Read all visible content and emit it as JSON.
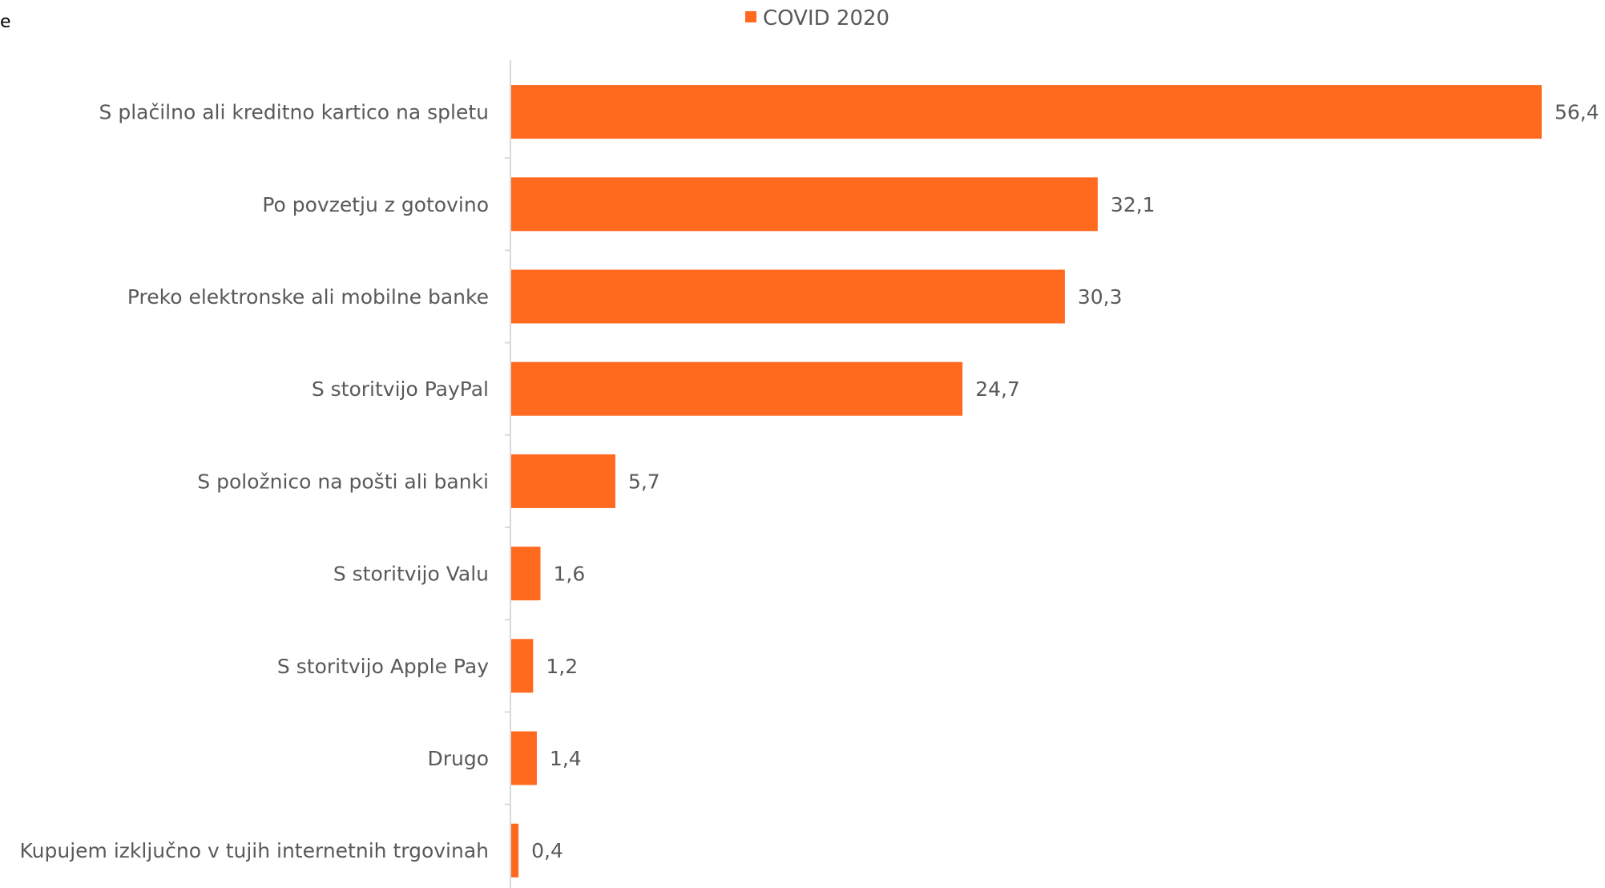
{
  "edge_fragment_text": "e",
  "legend": {
    "label": "COVID 2020"
  },
  "colors": {
    "bar": "#ff6a1f",
    "text": "#595959",
    "axis": "#d9d9d9"
  },
  "chart_data": {
    "type": "bar",
    "orientation": "horizontal",
    "title": "",
    "xlabel": "",
    "ylabel": "",
    "legend_position": "top-center",
    "grid": false,
    "xlim": [
      0,
      56.4
    ],
    "categories": [
      "S plačilno ali kreditno kartico na spletu",
      "Po povzetju z gotovino",
      "Preko elektronske ali mobilne banke",
      "S storitvijo PayPal",
      "S položnico na pošti ali banki",
      "S storitvijo Valu",
      "S storitvijo Apple Pay",
      "Drugo",
      "Kupujem izključno v tujih internetnih trgovinah"
    ],
    "series": [
      {
        "name": "COVID 2020",
        "values": [
          56.4,
          32.1,
          30.3,
          24.7,
          5.7,
          1.6,
          1.2,
          1.4,
          0.4
        ],
        "value_labels": [
          "56,4",
          "32,1",
          "30,3",
          "24,7",
          "5,7",
          "1,6",
          "1,2",
          "1,4",
          "0,4"
        ]
      }
    ]
  }
}
